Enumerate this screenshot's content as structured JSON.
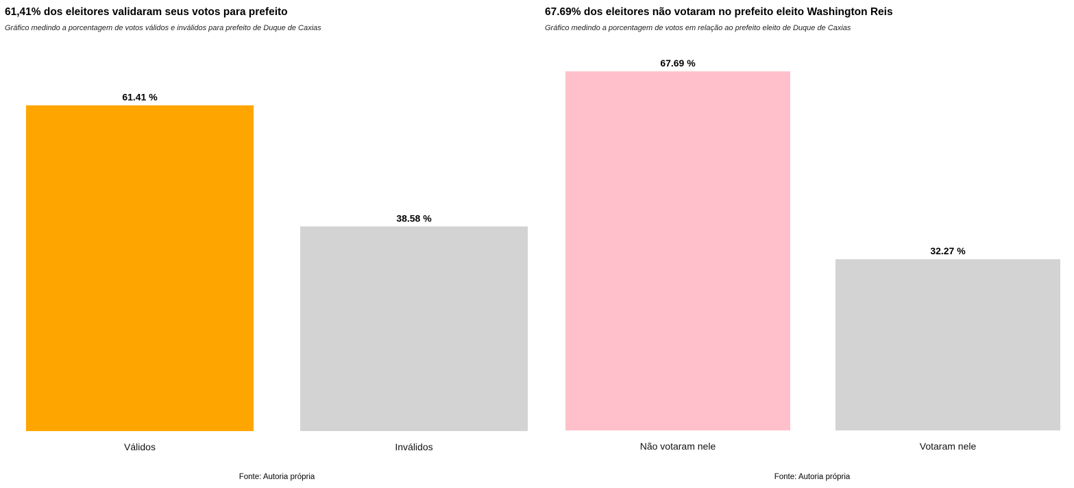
{
  "chart_data": [
    {
      "type": "bar",
      "title": "61,41% dos eleitores validaram seus votos para prefeito",
      "subtitle": "Gráfico medindo a porcentagem de votos válidos e inválidos para prefeito de Duque de Caxias",
      "caption": "Fonte: Autoria própria",
      "categories": [
        "Válidos",
        "Inválidos"
      ],
      "values": [
        61.41,
        38.58
      ],
      "value_labels": [
        "61.41 %",
        "38.58 %"
      ],
      "colors": [
        "#FFA500",
        "#D3D3D3"
      ],
      "xlabel": "",
      "ylabel": "",
      "ylim": [
        0,
        100
      ],
      "grid": false
    },
    {
      "type": "bar",
      "title": "67.69% dos eleitores não votaram no prefeito eleito Washington Reis",
      "subtitle": "Gráfico medindo a porcentagem de votos em relação ao prefeito eleito de Duque de Caxias",
      "caption": "Fonte: Autoria própria",
      "categories": [
        "Não votaram nele",
        "Votaram nele"
      ],
      "values": [
        67.69,
        32.27
      ],
      "value_labels": [
        "67.69 %",
        "32.27 %"
      ],
      "colors": [
        "#FFC0CB",
        "#D3D3D3"
      ],
      "xlabel": "",
      "ylabel": "",
      "ylim": [
        0,
        100
      ],
      "grid": false
    }
  ]
}
